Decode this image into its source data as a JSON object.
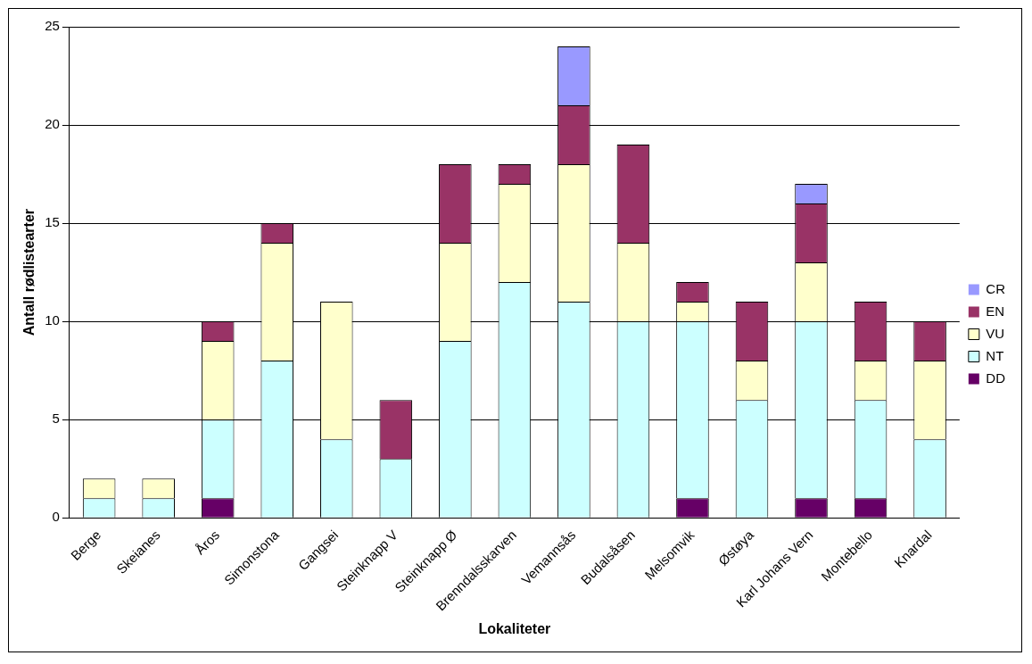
{
  "chart_data": {
    "type": "bar",
    "stacked": true,
    "xlabel": "Lokaliteter",
    "ylabel": "Antall rødlistearter",
    "categories": [
      "Berge",
      "Skeianes",
      "Åros",
      "Simonstona",
      "Gangsei",
      "Steinknapp V",
      "Steinknapp Ø",
      "Brenndalsskarven",
      "Vemannsås",
      "Budalsåsen",
      "Melsomvik",
      "Østøya",
      "Karl Johans Vern",
      "Montebello",
      "Knardal"
    ],
    "series": [
      {
        "name": "DD",
        "color": "#660066",
        "values": [
          0,
          0,
          1,
          0,
          0,
          0,
          0,
          0,
          0,
          0,
          1,
          0,
          1,
          1,
          0
        ]
      },
      {
        "name": "NT",
        "color": "#ccffff",
        "values": [
          1,
          1,
          4,
          8,
          4,
          3,
          9,
          12,
          11,
          10,
          9,
          6,
          9,
          5,
          4
        ]
      },
      {
        "name": "VU",
        "color": "#ffffcc",
        "values": [
          1,
          1,
          4,
          6,
          7,
          0,
          5,
          5,
          7,
          4,
          1,
          2,
          3,
          2,
          4
        ]
      },
      {
        "name": "EN",
        "color": "#993366",
        "values": [
          0,
          0,
          1,
          1,
          0,
          3,
          4,
          1,
          3,
          5,
          1,
          3,
          3,
          3,
          2
        ]
      },
      {
        "name": "CR",
        "color": "#9999ff",
        "values": [
          0,
          0,
          0,
          0,
          0,
          0,
          0,
          0,
          3,
          0,
          0,
          0,
          1,
          0,
          0
        ]
      }
    ],
    "ylim": [
      0,
      25
    ],
    "yticks": [
      0,
      5,
      10,
      15,
      20,
      25
    ],
    "grid": "y",
    "legend": "right"
  }
}
